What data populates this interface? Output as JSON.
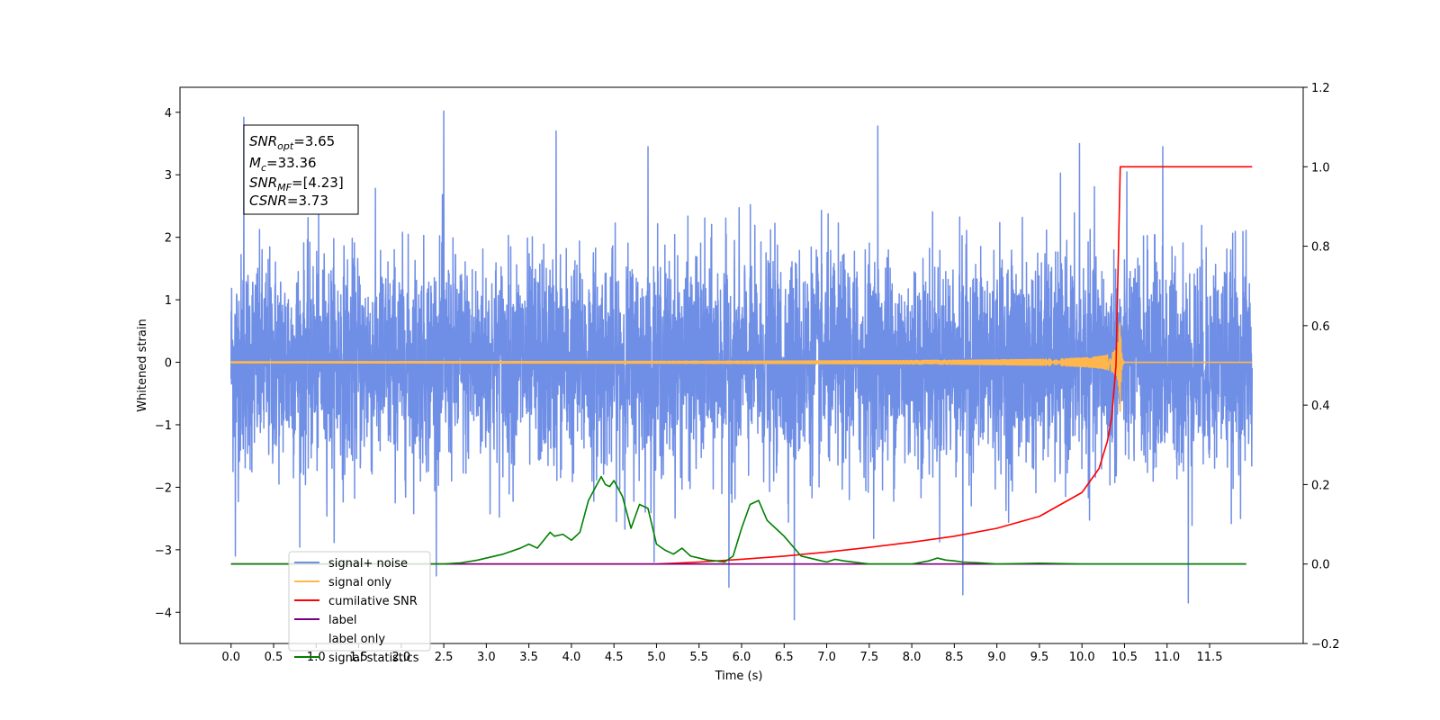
{
  "chart_data": {
    "type": "line",
    "xlabel": "Time (s)",
    "ylabel": "Whitened strain",
    "xlim": [
      -0.6,
      12.6
    ],
    "ylim_left": [
      -4.5,
      4.4
    ],
    "ylim_right": [
      -0.2,
      1.2
    ],
    "x_ticks": [
      0.0,
      0.5,
      1.0,
      1.5,
      2.0,
      2.5,
      3.0,
      3.5,
      4.0,
      4.5,
      5.0,
      5.5,
      6.0,
      6.5,
      7.0,
      7.5,
      8.0,
      8.5,
      9.0,
      9.5,
      10.0,
      10.5,
      11.0,
      11.5
    ],
    "x_tick_labels": [
      "0.0",
      "0.5",
      "1.0",
      "1.5",
      "2.0",
      "2.5",
      "3.0",
      "3.5",
      "4.0",
      "4.5",
      "5.0",
      "5.5",
      "6.0",
      "6.5",
      "7.0",
      "7.5",
      "8.0",
      "8.5",
      "9.0",
      "9.5",
      "10.0",
      "10.5",
      "11.0",
      "11.5"
    ],
    "y_left_ticks": [
      -4,
      -3,
      -2,
      -1,
      0,
      1,
      2,
      3,
      4
    ],
    "y_left_tick_labels": [
      "−4",
      "−3",
      "−2",
      "−1",
      "0",
      "1",
      "2",
      "3",
      "4"
    ],
    "y_right_ticks": [
      -0.2,
      0.0,
      0.2,
      0.4,
      0.6,
      0.8,
      1.0,
      1.2
    ],
    "y_right_tick_labels": [
      "−0.2",
      "0.0",
      "0.2",
      "0.4",
      "0.6",
      "0.8",
      "1.0",
      "1.2"
    ],
    "grid": false,
    "legend_position": "bottom-left",
    "stats_box": {
      "snr_opt_main": "SNR",
      "snr_opt_sub": "opt",
      "snr_opt_value": "=3.65",
      "mc_main": "M",
      "mc_sub": "c",
      "mc_value": "=33.36",
      "snr_mf_main": "SNR",
      "snr_mf_sub": "MF",
      "snr_mf_value": "=[4.23]",
      "csnr_main": "CSNR",
      "csnr_value": "=3.73"
    },
    "series": [
      {
        "name": "signal+ noise",
        "color": "#6f8ee6",
        "axis": "left",
        "kind": "noise",
        "x_range": [
          0.0,
          12.0
        ],
        "std": 0.85,
        "extremes": [
          {
            "x": 0.15,
            "y": 3.92
          },
          {
            "x": 2.5,
            "y": 4.02
          },
          {
            "x": 3.82,
            "y": 3.7
          },
          {
            "x": 6.62,
            "y": -4.12
          },
          {
            "x": 7.6,
            "y": 3.78
          },
          {
            "x": 8.6,
            "y": -3.72
          },
          {
            "x": 9.97,
            "y": 3.5
          },
          {
            "x": 11.25,
            "y": -3.85
          },
          {
            "x": 0.05,
            "y": -3.1
          },
          {
            "x": 5.85,
            "y": -3.6
          },
          {
            "x": 10.95,
            "y": 3.45
          },
          {
            "x": 4.9,
            "y": 3.45
          }
        ]
      },
      {
        "name": "signal only",
        "color": "#ffb74d",
        "axis": "left",
        "kind": "chirp",
        "x_range": [
          0.0,
          12.0
        ],
        "merger_time": 10.45,
        "peak_amplitude": 0.9
      },
      {
        "name": "cumilative SNR",
        "color": "#ff0000",
        "axis": "right",
        "x": [
          0.0,
          5.0,
          5.5,
          6.0,
          6.5,
          7.0,
          7.5,
          8.0,
          8.5,
          9.0,
          9.5,
          10.0,
          10.2,
          10.3,
          10.35,
          10.4,
          10.43,
          10.45,
          12.0
        ],
        "values": [
          0.0,
          0.0,
          0.005,
          0.012,
          0.02,
          0.03,
          0.042,
          0.055,
          0.07,
          0.09,
          0.12,
          0.18,
          0.24,
          0.31,
          0.37,
          0.5,
          0.8,
          1.0,
          1.0
        ]
      },
      {
        "name": "label",
        "color": "#7b0080",
        "axis": "right",
        "x": [
          0.0,
          11.93
        ],
        "values": [
          0.0,
          0.0
        ]
      },
      {
        "name": "label only",
        "color": "#000000",
        "axis": "right",
        "hidden": true,
        "x": [],
        "values": []
      },
      {
        "name": "signal statistics",
        "color": "#008000",
        "axis": "right",
        "x": [
          0.0,
          2.5,
          2.7,
          2.9,
          3.0,
          3.2,
          3.4,
          3.5,
          3.6,
          3.75,
          3.8,
          3.9,
          4.0,
          4.1,
          4.2,
          4.3,
          4.35,
          4.4,
          4.45,
          4.5,
          4.6,
          4.7,
          4.8,
          4.9,
          5.0,
          5.1,
          5.2,
          5.3,
          5.4,
          5.5,
          5.6,
          5.7,
          5.8,
          5.9,
          6.0,
          6.1,
          6.2,
          6.3,
          6.4,
          6.5,
          6.6,
          6.7,
          6.8,
          6.9,
          7.0,
          7.1,
          7.2,
          7.5,
          8.0,
          8.2,
          8.3,
          8.4,
          8.5,
          8.6,
          8.8,
          9.0,
          9.5,
          10.0,
          11.93
        ],
        "values": [
          0.0,
          0.0,
          0.003,
          0.01,
          0.015,
          0.025,
          0.04,
          0.05,
          0.04,
          0.08,
          0.07,
          0.075,
          0.06,
          0.08,
          0.16,
          0.2,
          0.22,
          0.2,
          0.195,
          0.21,
          0.17,
          0.09,
          0.15,
          0.14,
          0.05,
          0.035,
          0.025,
          0.04,
          0.02,
          0.015,
          0.01,
          0.008,
          0.005,
          0.02,
          0.09,
          0.15,
          0.16,
          0.11,
          0.09,
          0.07,
          0.045,
          0.02,
          0.015,
          0.01,
          0.005,
          0.012,
          0.008,
          0.0,
          0.0,
          0.008,
          0.015,
          0.01,
          0.008,
          0.005,
          0.003,
          0.0,
          0.002,
          0.0,
          0.0
        ]
      }
    ]
  }
}
